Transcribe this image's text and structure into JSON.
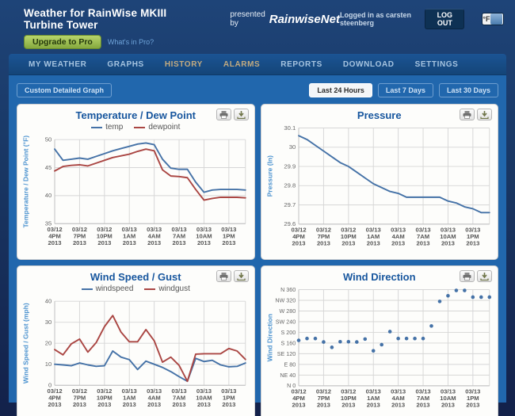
{
  "header": {
    "title": "Weather for RainWise MKIII Turbine Tower",
    "presented_by": "presented by",
    "brand": "RainwiseNet",
    "logged_in": "Logged in as carsten steenberg",
    "logout_label": "LOG OUT",
    "unit_label": "°F",
    "upgrade_label": "Upgrade to Pro",
    "whats_in_pro": "What's in Pro?"
  },
  "nav": {
    "items": [
      {
        "label": "MY WEATHER"
      },
      {
        "label": "GRAPHS"
      },
      {
        "label": "HISTORY"
      },
      {
        "label": "ALARMS"
      },
      {
        "label": "REPORTS"
      },
      {
        "label": "DOWNLOAD"
      },
      {
        "label": "SETTINGS"
      }
    ]
  },
  "toolbar": {
    "custom_graph_label": "Custom Detailed Graph",
    "range_buttons": [
      {
        "label": "Last 24 Hours",
        "active": true
      },
      {
        "label": "Last 7 Days",
        "active": false
      },
      {
        "label": "Last 30 Days",
        "active": false
      }
    ]
  },
  "panel_actions": [
    {
      "icon": "print-icon"
    },
    {
      "icon": "download-icon"
    }
  ],
  "colors": {
    "series_blue": "#4572A7",
    "series_red": "#AA4643",
    "chart_title": "#17569e",
    "axis_title_blue": "#4e94d0",
    "gridline": "#d6d6d6",
    "content_bg": "#2167ad"
  },
  "chart_data": {
    "x_tick_labels": [
      {
        "date": "03/12",
        "time": "4PM",
        "year": "2013"
      },
      {
        "date": "03/12",
        "time": "7PM",
        "year": "2013"
      },
      {
        "date": "03/12",
        "time": "10PM",
        "year": "2013"
      },
      {
        "date": "03/13",
        "time": "1AM",
        "year": "2013"
      },
      {
        "date": "03/13",
        "time": "4AM",
        "year": "2013"
      },
      {
        "date": "03/13",
        "time": "7AM",
        "year": "2013"
      },
      {
        "date": "03/13",
        "time": "10AM",
        "year": "2013"
      },
      {
        "date": "03/13",
        "time": "1PM",
        "year": "2013"
      }
    ],
    "hours_span": 23,
    "charts": [
      {
        "type": "line",
        "title": "Temperature / Dew Point",
        "ylabel": "Temperature / Dew Point (°F)",
        "ylim": [
          35,
          50
        ],
        "yticks": [
          {
            "v": 50,
            "label": "50"
          },
          {
            "v": 45,
            "label": "45"
          },
          {
            "v": 40,
            "label": "40"
          },
          {
            "v": 35,
            "label": "35"
          }
        ],
        "series": [
          {
            "name": "temp",
            "color": "#4572A7",
            "values": [
              48.3,
              46.3,
              46.5,
              46.7,
              46.5,
              47.0,
              47.5,
              48.0,
              48.4,
              48.8,
              49.2,
              49.4,
              49.1,
              46.5,
              44.9,
              44.7,
              44.7,
              42.4,
              40.6,
              41.0,
              41.1,
              41.1,
              41.1,
              41.0
            ]
          },
          {
            "name": "dewpoint",
            "color": "#AA4643",
            "values": [
              44.4,
              45.2,
              45.4,
              45.5,
              45.3,
              45.8,
              46.3,
              46.8,
              47.1,
              47.4,
              47.9,
              48.3,
              48.0,
              44.6,
              43.5,
              43.4,
              43.2,
              41.1,
              39.2,
              39.5,
              39.7,
              39.7,
              39.7,
              39.6
            ]
          }
        ]
      },
      {
        "type": "line",
        "title": "Pressure",
        "ylabel": "Pressure (In)",
        "ylim": [
          29.6,
          30.1
        ],
        "yticks": [
          {
            "v": 30.1,
            "label": "30.1"
          },
          {
            "v": 30.0,
            "label": "30"
          },
          {
            "v": 29.9,
            "label": "29.9"
          },
          {
            "v": 29.8,
            "label": "29.8"
          },
          {
            "v": 29.7,
            "label": "29.7"
          },
          {
            "v": 29.6,
            "label": "29.6"
          }
        ],
        "series": [
          {
            "name": "pressure",
            "color": "#4572A7",
            "values": [
              30.06,
              30.04,
              30.01,
              29.98,
              29.95,
              29.92,
              29.9,
              29.87,
              29.84,
              29.81,
              29.79,
              29.77,
              29.76,
              29.74,
              29.74,
              29.74,
              29.74,
              29.74,
              29.72,
              29.71,
              29.69,
              29.68,
              29.66,
              29.66
            ]
          }
        ]
      },
      {
        "type": "line",
        "title": "Wind Speed / Gust",
        "ylabel": "Wind Speed / Gust (mph)",
        "ylim": [
          0,
          40
        ],
        "yticks": [
          {
            "v": 40,
            "label": "40"
          },
          {
            "v": 30,
            "label": "30"
          },
          {
            "v": 20,
            "label": "20"
          },
          {
            "v": 10,
            "label": "10"
          },
          {
            "v": 0,
            "label": "0"
          }
        ],
        "series": [
          {
            "name": "windspeed",
            "color": "#4572A7",
            "values": [
              10.0,
              9.7,
              9.3,
              10.6,
              9.7,
              9.0,
              9.3,
              16.3,
              13.4,
              12.2,
              7.5,
              11.5,
              10.0,
              8.5,
              6.5,
              4.1,
              1.9,
              12.8,
              11.3,
              11.9,
              9.7,
              8.8,
              9.0,
              10.6
            ]
          },
          {
            "name": "windgust",
            "color": "#AA4643",
            "values": [
              17.0,
              14.5,
              19.7,
              22.0,
              15.8,
              20.3,
              27.9,
              33.2,
              25.3,
              20.7,
              20.7,
              26.5,
              21.2,
              11.0,
              13.4,
              9.5,
              1.9,
              14.8,
              15.0,
              15.0,
              15.0,
              17.5,
              16.3,
              12.3
            ]
          }
        ]
      },
      {
        "type": "scatter",
        "title": "Wind Direction",
        "ylabel": "Wind Direction",
        "ylim": [
          0,
          360
        ],
        "tick_font": 7.5,
        "yticks": [
          {
            "v": 360,
            "label": "N 360"
          },
          {
            "v": 320,
            "label": "NW 320"
          },
          {
            "v": 280,
            "label": "W 280"
          },
          {
            "v": 240,
            "label": "SW 240"
          },
          {
            "v": 200,
            "label": "S 200"
          },
          {
            "v": 160,
            "label": "S 160"
          },
          {
            "v": 120,
            "label": "SE 120"
          },
          {
            "v": 80,
            "label": "E 80"
          },
          {
            "v": 40,
            "label": "NE 40"
          },
          {
            "v": 0,
            "label": "N 0"
          }
        ],
        "series": [
          {
            "name": "winddirection",
            "color": "#4572A7",
            "values": [
              170,
              177,
              177,
              164,
              144,
              165,
              165,
              164,
              175,
              131,
              154,
              203,
              177,
              177,
              177,
              177,
              224,
              316,
              337,
              357,
              357,
              332,
              332,
              332
            ]
          }
        ]
      }
    ]
  }
}
